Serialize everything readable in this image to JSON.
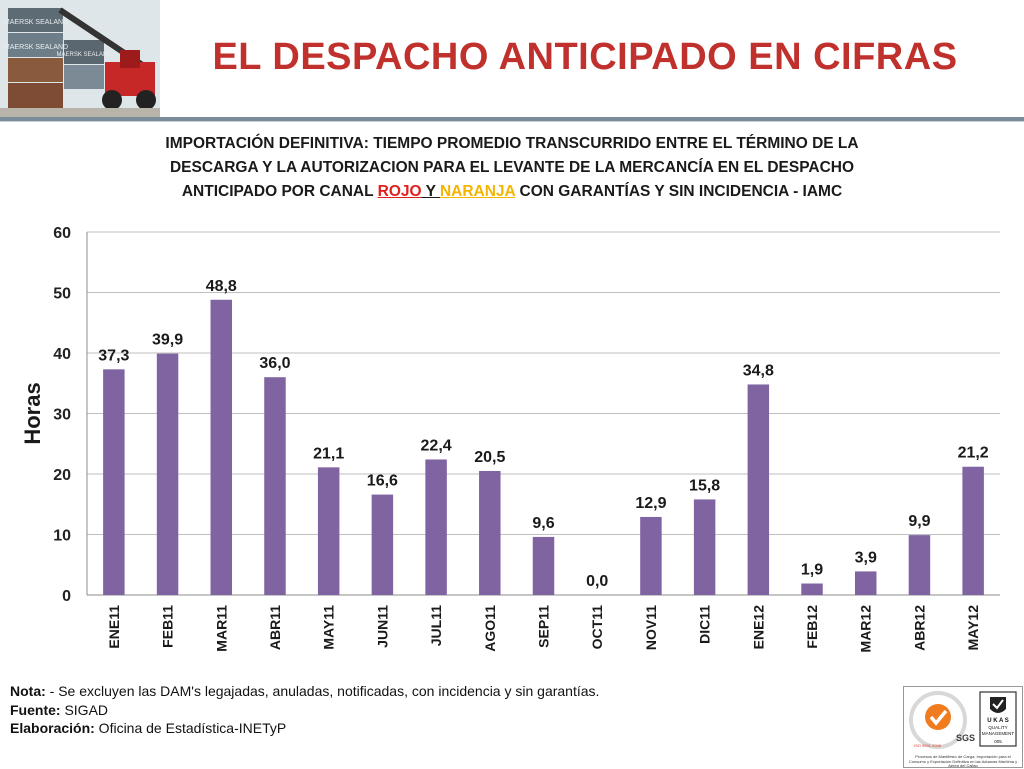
{
  "header": {
    "title": "EL DESPACHO ANTICIPADO EN CIFRAS",
    "photo_labels": [
      "MAERSK SEALAND",
      "MAERSK SEALAND",
      "MAERSK SEALAND"
    ]
  },
  "subtitle": {
    "line1": "IMPORTACIÓN DEFINITIVA: TIEMPO PROMEDIO TRANSCURRIDO ENTRE EL TÉRMINO DE LA",
    "line2": "DESCARGA Y LA AUTORIZACION PARA EL LEVANTE DE LA MERCANCÍA EN EL DESPACHO",
    "line3_pre": "ANTICIPADO POR CANAL ",
    "rojo": "ROJO",
    "y": " Y ",
    "naranja": "NARANJA",
    "line3_post": " CON GARANTÍAS Y SIN INCIDENCIA - IAMC"
  },
  "colors": {
    "title": "#c0302c",
    "bar": "#8064a2",
    "rojo": "#e0201c",
    "naranja": "#f4b400"
  },
  "chart_data": {
    "type": "bar",
    "ylabel": "Horas",
    "ylim": [
      0,
      60
    ],
    "yticks": [
      0,
      10,
      20,
      30,
      40,
      50,
      60
    ],
    "grid": true,
    "categories": [
      "ENE11",
      "FEB11",
      "MAR11",
      "ABR11",
      "MAY11",
      "JUN11",
      "JUL11",
      "AGO11",
      "SEP11",
      "OCT11",
      "NOV11",
      "DIC11",
      "ENE12",
      "FEB12",
      "MAR12",
      "ABR12",
      "MAY12"
    ],
    "values": [
      37.3,
      39.9,
      48.8,
      36.0,
      21.1,
      16.6,
      22.4,
      20.5,
      9.6,
      0.0,
      12.9,
      15.8,
      34.8,
      1.9,
      3.9,
      9.9,
      21.2
    ],
    "data_labels": [
      "37,3",
      "39,9",
      "48,8",
      "36,0",
      "21,1",
      "16,6",
      "22,4",
      "20,5",
      "9,6",
      "0,0",
      "12,9",
      "15,8",
      "34,8",
      "1,9",
      "3,9",
      "9,9",
      "21,2"
    ]
  },
  "notes": {
    "nota_label": "Nota:",
    "nota_text": " - Se excluyen las DAM's legajadas, anuladas, notificadas, con incidencia y sin garantías.",
    "fuente_label": "Fuente:",
    "fuente_text": " SIGAD",
    "elab_label": "Elaboración:",
    "elab_text": " Oficina de Estadística-INETyP"
  },
  "cert": {
    "sgs": "SGS",
    "ukas_line1": "U K A S",
    "ukas_line2": "QUALITY",
    "ukas_line3": "MANAGEMENT",
    "ukas_code": "005",
    "iso": "ISO 9001:2008",
    "caption": "Procesos de Manifiesto de Carga, Importación para el Consumo y Exportación Definitiva en las Aduanas Marítima y Aérea del Callao"
  }
}
